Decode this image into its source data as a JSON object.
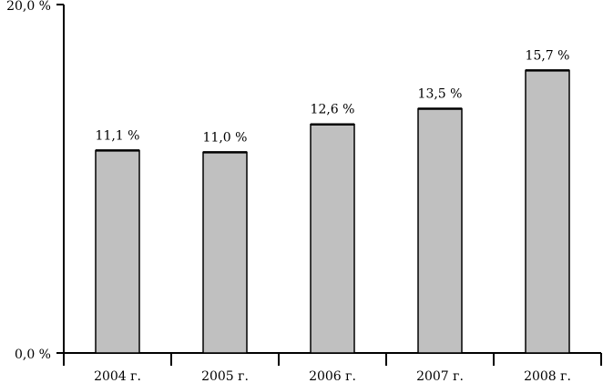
{
  "chart_data": {
    "type": "bar",
    "categories": [
      "2004 г.",
      "2005 г.",
      "2006 г.",
      "2007 г.",
      "2008 г."
    ],
    "values": [
      11.1,
      11.0,
      12.6,
      13.5,
      15.7
    ],
    "data_labels": [
      "11,1 %",
      "11,0 %",
      "12,6 %",
      "13,5 %",
      "15,7 %"
    ],
    "y_tick_labels": [
      "0,0 %",
      "20,0 %"
    ],
    "ylim": [
      0,
      20
    ],
    "grid": false,
    "bar_color": "#c0c0c0",
    "title": "",
    "xlabel": "",
    "ylabel": ""
  }
}
